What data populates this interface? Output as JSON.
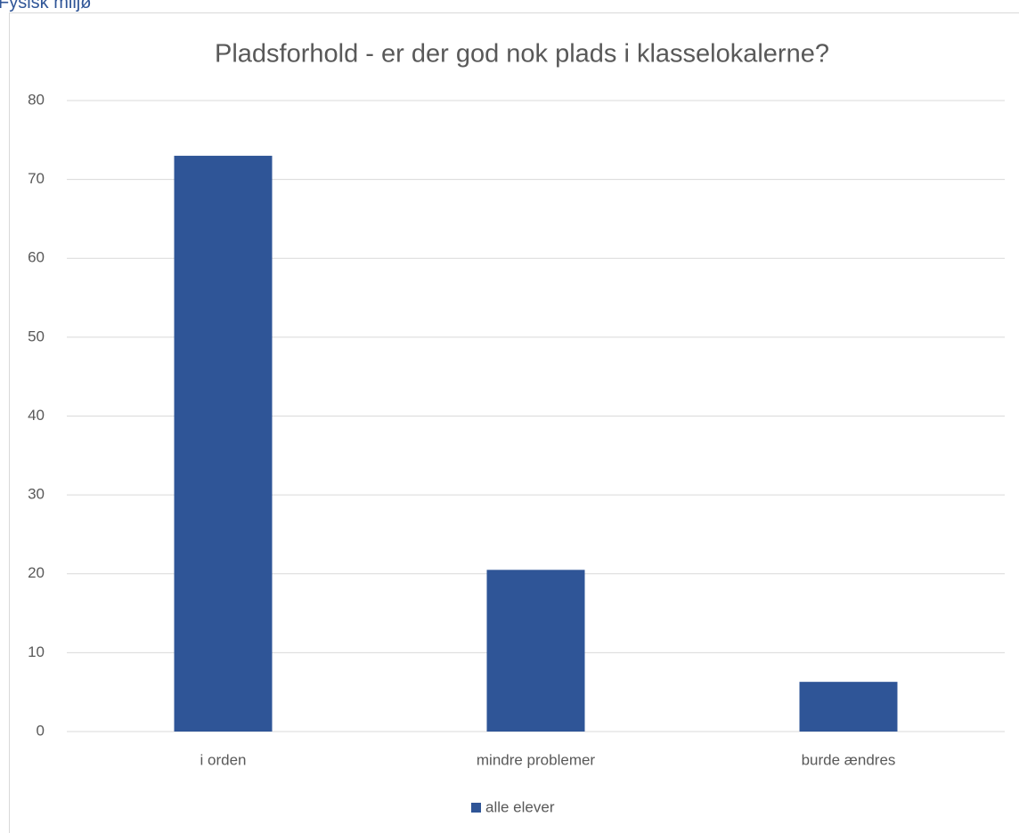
{
  "header": "Fysisk miljø",
  "chart_data": {
    "type": "bar",
    "title": "Pladsforhold - er der god nok plads i klasselokalerne?",
    "categories": [
      "i orden",
      "mindre problemer",
      "burde ændres"
    ],
    "series": [
      {
        "name": "alle elever",
        "color": "#2f5597",
        "values": [
          73,
          20.5,
          6.3
        ]
      }
    ],
    "ylim": [
      0,
      80
    ],
    "yticks": [
      0,
      10,
      20,
      30,
      40,
      50,
      60,
      70,
      80
    ],
    "grid": true,
    "legend": "bottom"
  }
}
